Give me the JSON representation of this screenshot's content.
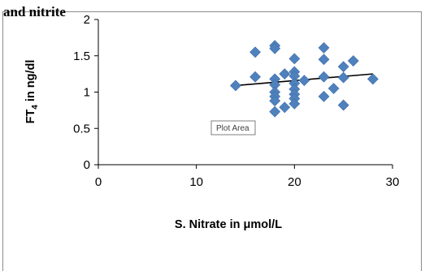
{
  "top_caption": "and nitrite",
  "tooltip": {
    "label": "Plot Area"
  },
  "chart_data": {
    "type": "scatter",
    "title": "",
    "xlabel": "S. Nitrate in μmol/L",
    "ylabel_main": "FT",
    "ylabel_sub": "4",
    "ylabel_tail": " in ng/dl",
    "xlim": [
      0,
      30
    ],
    "ylim": [
      0,
      2
    ],
    "x_ticks": [
      "0",
      "10",
      "20",
      "30"
    ],
    "y_ticks": [
      "0",
      "0.5",
      "1",
      "1.5",
      "2"
    ],
    "x_tick_values": [
      0,
      10,
      20,
      30
    ],
    "y_tick_values": [
      0,
      0.5,
      1,
      1.5,
      2
    ],
    "grid": false,
    "marker": "diamond",
    "marker_color": "#4f81bd",
    "trendline_color": "#000000",
    "points": [
      [
        14,
        1.09
      ],
      [
        16,
        1.55
      ],
      [
        16,
        1.21
      ],
      [
        18,
        1.64
      ],
      [
        18,
        1.6
      ],
      [
        18,
        1.18
      ],
      [
        18,
        1.1
      ],
      [
        18,
        1.0
      ],
      [
        18,
        0.94
      ],
      [
        18,
        0.88
      ],
      [
        18,
        0.73
      ],
      [
        19,
        1.25
      ],
      [
        19,
        0.79
      ],
      [
        20,
        1.46
      ],
      [
        20,
        1.28
      ],
      [
        20,
        1.22
      ],
      [
        20,
        1.12
      ],
      [
        20,
        1.04
      ],
      [
        20,
        0.97
      ],
      [
        20,
        0.91
      ],
      [
        20,
        0.84
      ],
      [
        21,
        1.16
      ],
      [
        23,
        1.61
      ],
      [
        23,
        1.45
      ],
      [
        23,
        1.21
      ],
      [
        23,
        0.94
      ],
      [
        24,
        1.05
      ],
      [
        25,
        1.35
      ],
      [
        25,
        1.2
      ],
      [
        25,
        0.82
      ],
      [
        26,
        1.43
      ],
      [
        28,
        1.18
      ]
    ],
    "trendline": {
      "x": [
        14,
        28
      ],
      "y": [
        1.09,
        1.25
      ]
    }
  }
}
